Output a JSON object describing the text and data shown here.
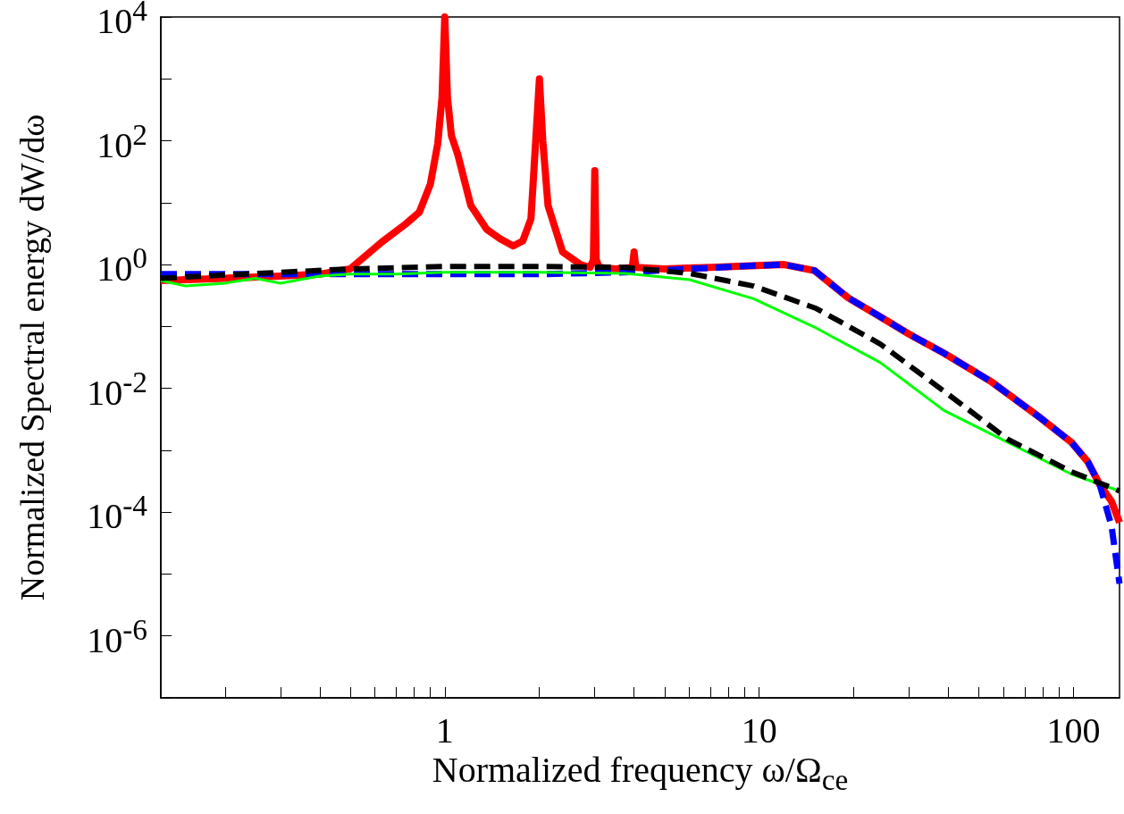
{
  "chart_data": {
    "type": "line",
    "xlabel": "Normalized frequency ω/Ω$_{ce}$",
    "ylabel": "Normalized Spectral energy dW/dω",
    "log": "xy",
    "grid": false,
    "marker": "none",
    "xlim": [
      0.125,
      140
    ],
    "ylim": [
      1e-07,
      10000
    ],
    "xticks": [
      {
        "value": 0.2,
        "label": null
      },
      {
        "value": 0.3,
        "label": null
      },
      {
        "value": 0.4,
        "label": null
      },
      {
        "value": 0.5,
        "label": null
      },
      {
        "value": 0.6,
        "label": null
      },
      {
        "value": 0.7,
        "label": null
      },
      {
        "value": 0.8,
        "label": null
      },
      {
        "value": 0.9,
        "label": null
      },
      1,
      {
        "value": 2,
        "label": null
      },
      {
        "value": 3,
        "label": null
      },
      {
        "value": 4,
        "label": null
      },
      {
        "value": 5,
        "label": null
      },
      {
        "value": 6,
        "label": null
      },
      {
        "value": 7,
        "label": null
      },
      {
        "value": 8,
        "label": null
      },
      {
        "value": 9,
        "label": null
      },
      10,
      {
        "value": 20,
        "label": null
      },
      {
        "value": 30,
        "label": null
      },
      {
        "value": 40,
        "label": null
      },
      {
        "value": 50,
        "label": null
      },
      {
        "value": 60,
        "label": null
      },
      {
        "value": 70,
        "label": null
      },
      {
        "value": 80,
        "label": null
      },
      {
        "value": 90,
        "label": null
      },
      100
    ],
    "yticks": [
      {
        "value": 1e-07,
        "label": null
      },
      {
        "value": 1e-06,
        "label": "10$^{-6}$"
      },
      {
        "value": 1e-05,
        "label": null
      },
      {
        "value": 0.0001,
        "label": "10$^{-4}$"
      },
      {
        "value": 0.001,
        "label": null
      },
      {
        "value": 0.01,
        "label": "10$^{-2}$"
      },
      {
        "value": 0.1,
        "label": null
      },
      {
        "value": 1,
        "label": "10$^{0}$"
      },
      {
        "value": 10,
        "label": null
      },
      {
        "value": 100,
        "label": "10$^{2}$"
      },
      {
        "value": 1000,
        "label": null
      },
      {
        "value": 10000,
        "label": "10$^{4}$"
      }
    ],
    "series": [
      {
        "color": "#ff0000",
        "line_style": "solid",
        "x": [
          0.125,
          0.2,
          0.3,
          0.4,
          0.5,
          0.63,
          0.75,
          0.83,
          0.9,
          0.95,
          0.98,
          1,
          1.02,
          1.05,
          1.1,
          1.21,
          1.36,
          1.5,
          1.65,
          1.77,
          1.88,
          1.95,
          2,
          2.05,
          2.13,
          2.37,
          2.7,
          2.9,
          2.97,
          3,
          3.03,
          3.1,
          3.5,
          3.95,
          4,
          4.05,
          5,
          7,
          9,
          12,
          15,
          19.2,
          24.2,
          30,
          38.7,
          55,
          78,
          98.5,
          111,
          121,
          132,
          140
        ],
        "values": [
          0.55,
          0.6,
          0.65,
          0.7,
          0.85,
          2.3,
          4.5,
          7,
          20,
          90,
          500,
          10000,
          500,
          120,
          60,
          9,
          3.7,
          2.6,
          2,
          2.4,
          5.5,
          117,
          1000,
          100,
          9,
          1.6,
          1.0,
          0.9,
          1.2,
          33,
          1.2,
          0.9,
          0.85,
          0.9,
          1.6,
          0.9,
          0.85,
          0.9,
          0.95,
          1.0,
          0.8,
          0.29,
          0.145,
          0.075,
          0.037,
          0.0126,
          0.0034,
          0.00134,
          0.00065,
          0.00028,
          0.00015,
          6.8e-05
        ]
      },
      {
        "color": "#0000ff",
        "line_style": "dashed",
        "x": [
          0.125,
          0.5,
          1,
          2,
          3.75,
          6,
          9,
          12,
          15,
          19.2,
          24.2,
          30,
          38.7,
          55,
          78,
          98.5,
          111,
          121,
          132,
          140
        ],
        "values": [
          0.7,
          0.7,
          0.7,
          0.7,
          0.75,
          0.85,
          0.95,
          1.0,
          0.8,
          0.29,
          0.145,
          0.075,
          0.037,
          0.0126,
          0.0034,
          0.00134,
          0.00065,
          0.00028,
          6e-05,
          7e-06
        ]
      },
      {
        "color": "#00ff00",
        "line_style": "solid",
        "x": [
          0.125,
          0.15,
          0.2,
          0.25,
          0.3,
          0.4,
          0.5,
          0.7,
          1,
          2,
          3.75,
          6,
          9.6,
          15.2,
          24.3,
          38.7,
          61.8,
          98.5,
          140
        ],
        "values": [
          0.55,
          0.45,
          0.5,
          0.6,
          0.5,
          0.65,
          0.7,
          0.7,
          0.75,
          0.75,
          0.72,
          0.57,
          0.28,
          0.094,
          0.026,
          0.0044,
          0.00134,
          0.00041,
          0.00022
        ]
      },
      {
        "color": "#000000",
        "line_style": "dashed",
        "x": [
          0.125,
          0.3,
          0.5,
          1,
          2,
          3.75,
          6,
          9.6,
          15.2,
          24.3,
          38.7,
          61.8,
          98.5,
          140
        ],
        "values": [
          0.6,
          0.75,
          0.85,
          0.93,
          0.93,
          0.9,
          0.72,
          0.45,
          0.195,
          0.052,
          0.009,
          0.0015,
          0.00045,
          0.00022
        ]
      }
    ]
  }
}
